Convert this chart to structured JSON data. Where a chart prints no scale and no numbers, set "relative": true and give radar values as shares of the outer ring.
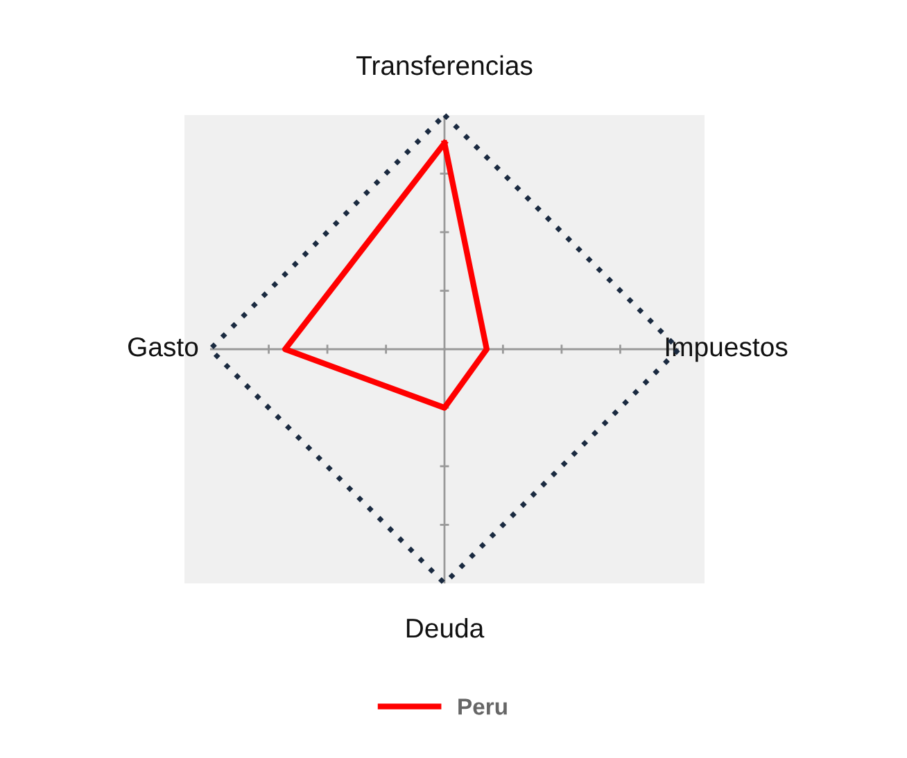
{
  "chart_data": {
    "type": "radar",
    "relative": true,
    "categories": [
      "Transferencias",
      "Impuestos",
      "Deuda",
      "Gasto"
    ],
    "series": [
      {
        "name": "Peru",
        "color": "#ff0000",
        "values": [
          0.88,
          0.18,
          0.25,
          0.68
        ]
      }
    ],
    "grid": true,
    "legend": "bottom",
    "marker": "none",
    "line_style": "solid"
  }
}
